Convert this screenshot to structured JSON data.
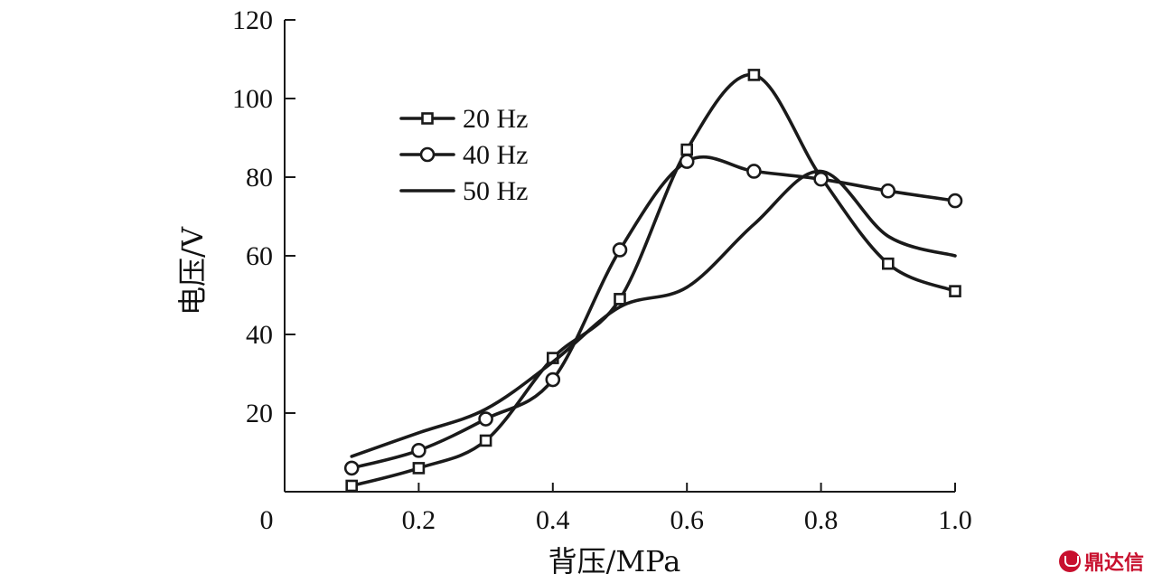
{
  "chart_data": {
    "type": "line",
    "title": "",
    "xlabel": "背压/MPa",
    "ylabel": "电压/V",
    "xlim": [
      0,
      1.0
    ],
    "ylim": [
      0,
      120
    ],
    "x_ticks": [
      {
        "value": 0,
        "label": "0"
      },
      {
        "value": 0.2,
        "label": "0.2"
      },
      {
        "value": 0.4,
        "label": "0.4"
      },
      {
        "value": 0.6,
        "label": "0.6"
      },
      {
        "value": 0.8,
        "label": "0.8"
      },
      {
        "value": 1.0,
        "label": "1.0"
      }
    ],
    "y_ticks": [
      {
        "value": 20,
        "label": "20"
      },
      {
        "value": 40,
        "label": "40"
      },
      {
        "value": 60,
        "label": "60"
      },
      {
        "value": 80,
        "label": "80"
      },
      {
        "value": 100,
        "label": "100"
      },
      {
        "value": 120,
        "label": "120"
      }
    ],
    "grid": false,
    "legend_position": "upper-left",
    "series": [
      {
        "name": "20 Hz",
        "marker": "square",
        "x": [
          0.1,
          0.2,
          0.3,
          0.4,
          0.5,
          0.6,
          0.7,
          0.8,
          0.9,
          1.0
        ],
        "y": [
          1.5,
          6,
          13,
          34,
          49,
          87,
          106,
          80,
          58,
          51
        ]
      },
      {
        "name": "40 Hz",
        "marker": "circle",
        "x": [
          0.1,
          0.2,
          0.3,
          0.4,
          0.5,
          0.6,
          0.7,
          0.8,
          0.9,
          1.0
        ],
        "y": [
          6,
          10.5,
          18.5,
          28.5,
          61.5,
          84,
          81.5,
          79.5,
          76.5,
          74
        ]
      },
      {
        "name": "50 Hz",
        "marker": "none",
        "x": [
          0.1,
          0.2,
          0.3,
          0.4,
          0.5,
          0.6,
          0.7,
          0.8,
          0.9,
          1.0
        ],
        "y": [
          9,
          15,
          21,
          33,
          47,
          52,
          68,
          81.5,
          65,
          60
        ]
      }
    ]
  },
  "watermark": {
    "text": "鼎达信",
    "color": "#c8102e"
  }
}
